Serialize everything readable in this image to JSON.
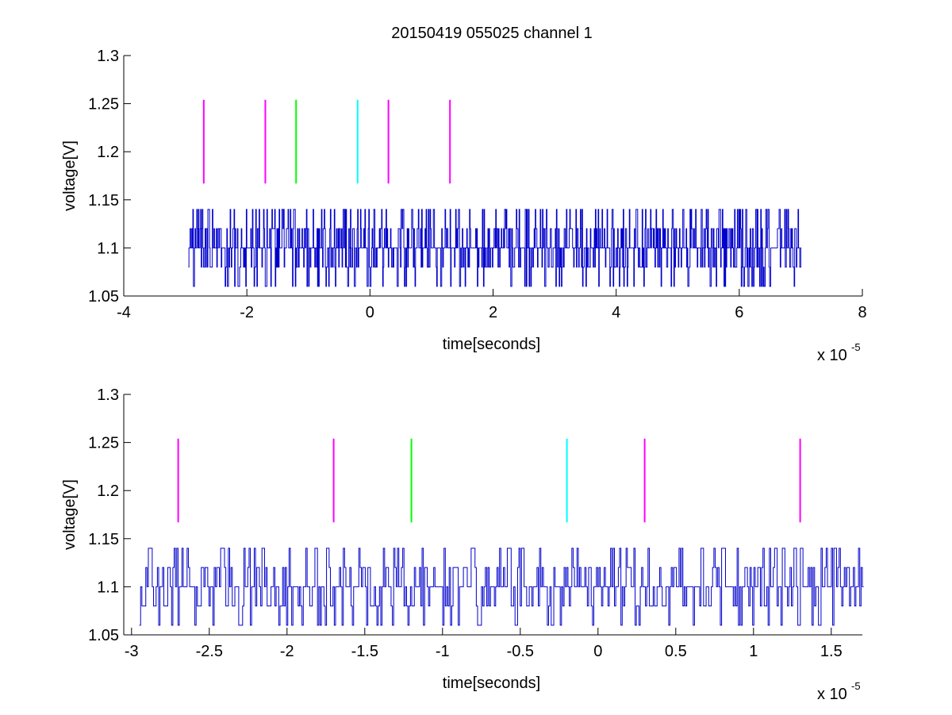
{
  "figure": {
    "title": "20150419 055025 channel 1"
  },
  "chart_data": [
    {
      "type": "line",
      "xlabel": "time[seconds]",
      "ylabel": "voltage[V]",
      "x_multiplier_label": "x 10",
      "x_multiplier_exponent": "-5",
      "xlim": [
        -4,
        8
      ],
      "ylim": [
        1.05,
        1.3
      ],
      "xticks": [
        -4,
        -2,
        0,
        2,
        4,
        6,
        8
      ],
      "xtick_labels": [
        "-4",
        "-2",
        "0",
        "2",
        "4",
        "6",
        "8"
      ],
      "yticks": [
        1.05,
        1.1,
        1.15,
        1.2,
        1.25,
        1.3
      ],
      "ytick_labels": [
        "1.05",
        "1.1",
        "1.15",
        "1.2",
        "1.25",
        "1.3"
      ],
      "grid": false,
      "series": [
        {
          "color": "#0000cc",
          "x_range": [
            -2.95,
            7.0
          ],
          "levels": [
            1.06,
            1.08,
            1.1,
            1.12,
            1.14
          ]
        }
      ],
      "markers": [
        {
          "x": -2.7,
          "y_range": [
            1.167,
            1.254
          ],
          "color": "#ff00ff"
        },
        {
          "x": -1.7,
          "y_range": [
            1.167,
            1.254
          ],
          "color": "#ff00ff"
        },
        {
          "x": -1.2,
          "y_range": [
            1.167,
            1.254
          ],
          "color": "#00ff00"
        },
        {
          "x": -0.2,
          "y_range": [
            1.167,
            1.254
          ],
          "color": "#00ffff"
        },
        {
          "x": 0.3,
          "y_range": [
            1.167,
            1.254
          ],
          "color": "#ff00ff"
        },
        {
          "x": 1.3,
          "y_range": [
            1.167,
            1.254
          ],
          "color": "#ff00ff"
        }
      ]
    },
    {
      "type": "line",
      "xlabel": "time[seconds]",
      "ylabel": "voltage[V]",
      "x_multiplier_label": "x 10",
      "x_multiplier_exponent": "-5",
      "xlim": [
        -3.05,
        1.7
      ],
      "ylim": [
        1.05,
        1.3
      ],
      "xticks": [
        -3,
        -2.5,
        -2,
        -1.5,
        -1,
        -0.5,
        0,
        0.5,
        1,
        1.5
      ],
      "xtick_labels": [
        "-3",
        "-2.5",
        "-2",
        "-1.5",
        "-1",
        "-0.5",
        "0",
        "0.5",
        "1",
        "1.5"
      ],
      "yticks": [
        1.05,
        1.1,
        1.15,
        1.2,
        1.25,
        1.3
      ],
      "ytick_labels": [
        "1.05",
        "1.1",
        "1.15",
        "1.2",
        "1.25",
        "1.3"
      ],
      "grid": false,
      "series": [
        {
          "color": "#0000cc",
          "x_range": [
            -2.95,
            1.7
          ],
          "levels": [
            1.06,
            1.08,
            1.1,
            1.12,
            1.14
          ]
        }
      ],
      "markers": [
        {
          "x": -2.7,
          "y_range": [
            1.167,
            1.254
          ],
          "color": "#ff00ff"
        },
        {
          "x": -1.7,
          "y_range": [
            1.167,
            1.254
          ],
          "color": "#ff00ff"
        },
        {
          "x": -1.2,
          "y_range": [
            1.167,
            1.254
          ],
          "color": "#00ff00"
        },
        {
          "x": -0.2,
          "y_range": [
            1.167,
            1.254
          ],
          "color": "#00ffff"
        },
        {
          "x": 0.3,
          "y_range": [
            1.167,
            1.254
          ],
          "color": "#ff00ff"
        },
        {
          "x": 1.3,
          "y_range": [
            1.167,
            1.254
          ],
          "color": "#ff00ff"
        }
      ]
    }
  ]
}
